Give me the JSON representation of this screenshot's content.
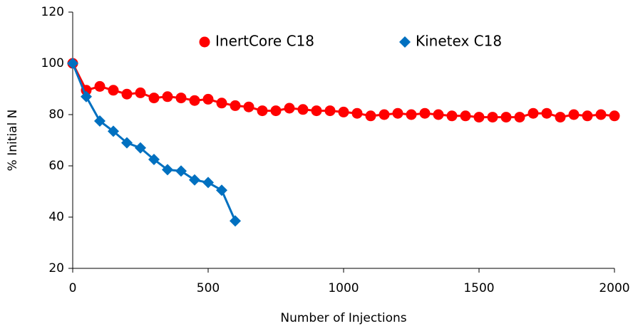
{
  "chart_data": {
    "type": "line",
    "x_label": "Number of Injections",
    "y_label": "% Initial N",
    "xlim": [
      0,
      2000
    ],
    "xticks": [
      0,
      500,
      1000,
      1500,
      2000
    ],
    "ylim": [
      20,
      120
    ],
    "yticks": [
      20,
      40,
      60,
      80,
      100,
      120
    ],
    "legend": "top",
    "series": [
      {
        "name": "InertCore C18",
        "color": "#ff0000",
        "marker": "circle",
        "x": [
          0,
          50,
          100,
          150,
          200,
          250,
          300,
          350,
          400,
          450,
          500,
          550,
          600,
          650,
          700,
          750,
          800,
          850,
          900,
          950,
          1000,
          1050,
          1100,
          1150,
          1200,
          1250,
          1300,
          1350,
          1400,
          1450,
          1500,
          1550,
          1600,
          1650,
          1700,
          1750,
          1800,
          1850,
          1900,
          1950,
          2000
        ],
        "values": [
          100,
          89.5,
          91,
          89.5,
          88,
          88.5,
          86.5,
          87,
          86.5,
          85.5,
          86,
          84.5,
          83.5,
          83,
          81.5,
          81.5,
          82.5,
          82,
          81.5,
          81.5,
          81,
          80.5,
          79.5,
          80,
          80.5,
          80,
          80.5,
          80,
          79.5,
          79.5,
          79,
          79,
          79,
          79,
          80.5,
          80.5,
          79,
          80,
          79.5,
          80,
          79.5
        ]
      },
      {
        "name": "Kinetex C18",
        "color": "#0070c0",
        "marker": "diamond",
        "x": [
          0,
          50,
          100,
          150,
          200,
          250,
          300,
          350,
          400,
          450,
          500,
          550,
          600
        ],
        "values": [
          100,
          87,
          77.5,
          73.5,
          69,
          67,
          62.5,
          58.5,
          58,
          54.5,
          53.5,
          50.5,
          38.5
        ]
      }
    ]
  }
}
